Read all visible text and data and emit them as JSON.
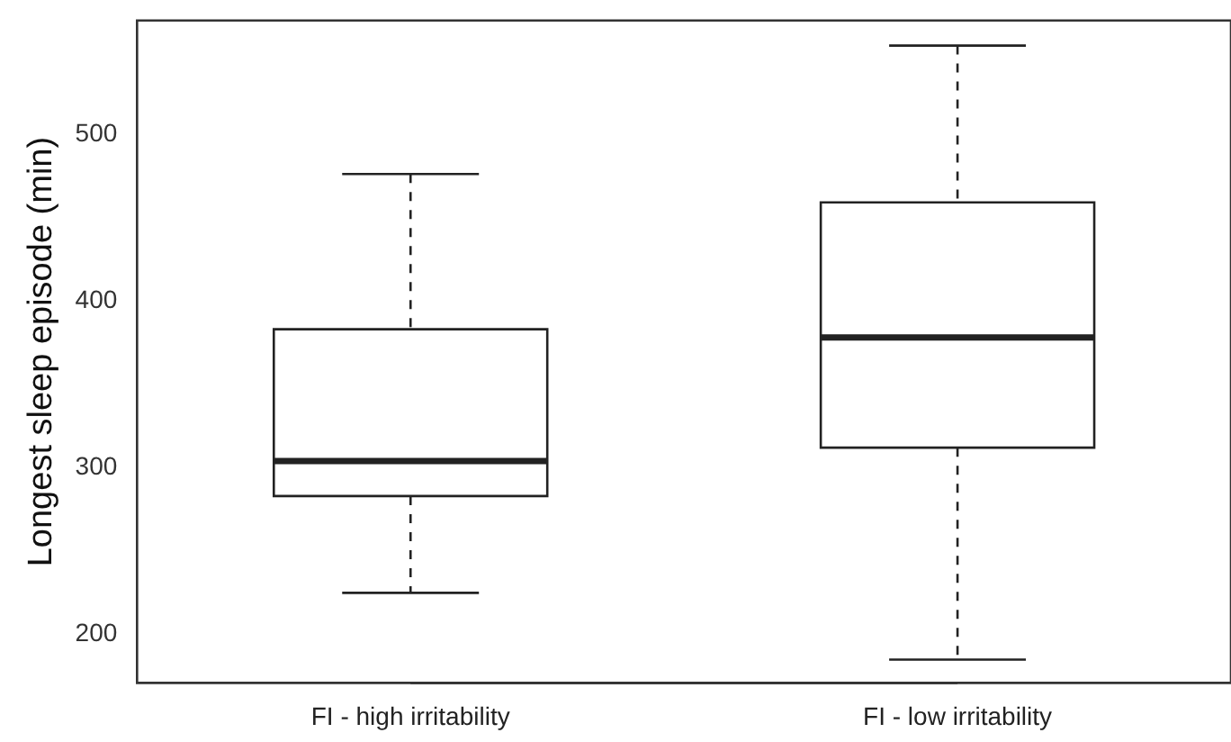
{
  "chart_data": {
    "type": "box",
    "ylabel": "Longest sleep episode (min)",
    "categories": [
      "FI - high irritability",
      "FI - low irritability"
    ],
    "boxes": [
      {
        "low": 225,
        "q1": 283,
        "median": 304,
        "q3": 383,
        "high": 476
      },
      {
        "low": 185,
        "q1": 312,
        "median": 378,
        "q3": 459,
        "high": 553
      }
    ],
    "ylim": [
      171,
      568
    ],
    "yticks": [
      200,
      300,
      400,
      500
    ],
    "grid": false,
    "legend": false
  }
}
